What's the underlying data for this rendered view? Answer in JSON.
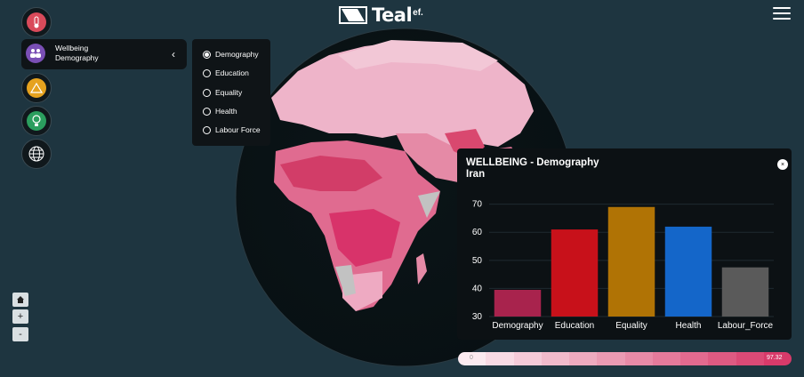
{
  "header": {
    "logo_text": "Teal",
    "logo_sup": "ef."
  },
  "sidebar": {
    "items": [
      {
        "name": "health-category",
        "color": "#d94a5a"
      },
      {
        "name": "wellbeing-category",
        "color": "#7a4fb5"
      },
      {
        "name": "risk-category",
        "color": "#e6a21e"
      },
      {
        "name": "ideas-category",
        "color": "#2b9e5e"
      },
      {
        "name": "globe-category",
        "color": "#f2f2f2"
      }
    ],
    "active_panel": {
      "line1": "Wellbeing",
      "line2": "Demography",
      "collapse_icon": "chevron-left-icon"
    }
  },
  "radio_options": [
    {
      "label": "Demography",
      "selected": true
    },
    {
      "label": "Education",
      "selected": false
    },
    {
      "label": "Equality",
      "selected": false
    },
    {
      "label": "Health",
      "selected": false
    },
    {
      "label": "Labour Force",
      "selected": false
    }
  ],
  "zoom": {
    "home_icon": "home-icon",
    "plus": "+",
    "minus": "-"
  },
  "popup": {
    "title": "WELLBEING - Demography",
    "subtitle": "Iran",
    "close_label": "×"
  },
  "chart_data": {
    "type": "bar",
    "categories": [
      "Demography",
      "Education",
      "Equality",
      "Health",
      "Labour_Force"
    ],
    "values": [
      39.5,
      61,
      69,
      62,
      47.5
    ],
    "colors": [
      "#a8234d",
      "#c8111a",
      "#b07305",
      "#1466c9",
      "#5a5a5a"
    ],
    "yticks": [
      30,
      40,
      50,
      60,
      70
    ],
    "ylim": [
      30,
      74
    ]
  },
  "legend": {
    "min": "0",
    "max": "97.32",
    "start_color": "#fbeaf0",
    "end_color": "#d83a6a"
  }
}
